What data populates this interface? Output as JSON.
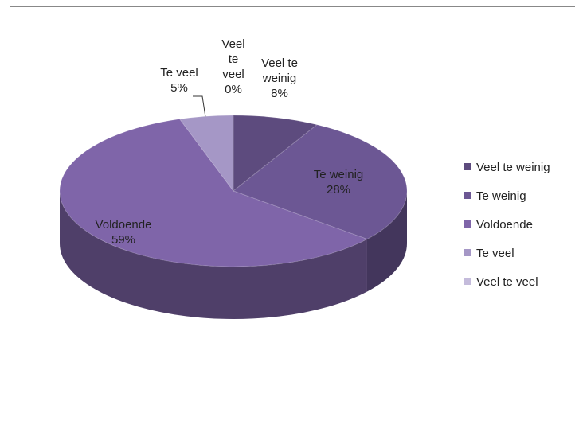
{
  "chart_data": {
    "type": "pie3d",
    "categories": [
      "Veel te weinig",
      "Te weinig",
      "Voldoende",
      "Te veel",
      "Veel te veel"
    ],
    "values": [
      8,
      28,
      59,
      5,
      0
    ],
    "value_labels": [
      "8%",
      "28%",
      "59%",
      "5%",
      "0%"
    ],
    "colors": [
      "#5d4b7e",
      "#6c5794",
      "#7f65a9",
      "#a597c6",
      "#c4bbdb"
    ],
    "legend": "right"
  }
}
